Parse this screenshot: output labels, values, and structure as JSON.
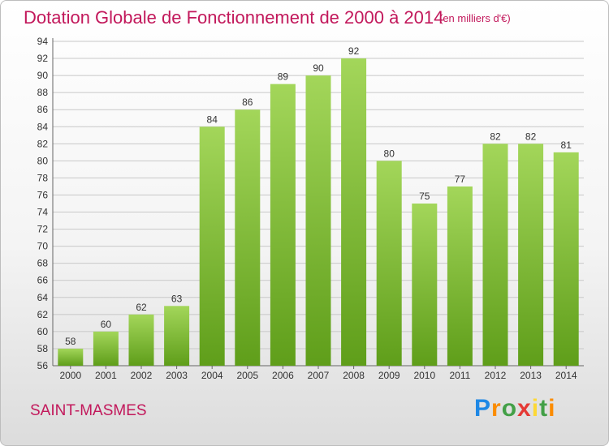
{
  "chart_data": {
    "type": "bar",
    "title": "Dotation Globale de Fonctionnement de 2000 à 2014",
    "subtitle": "(en milliers d'€)",
    "categories": [
      "2000",
      "2001",
      "2002",
      "2003",
      "2004",
      "2005",
      "2006",
      "2007",
      "2008",
      "2009",
      "2010",
      "2011",
      "2012",
      "2013",
      "2014"
    ],
    "values": [
      58,
      60,
      62,
      63,
      84,
      86,
      89,
      90,
      92,
      80,
      75,
      77,
      82,
      82,
      81
    ],
    "ylim": [
      56,
      94
    ],
    "ytick_step": 2,
    "grid": true,
    "bar_color": "#7fbf2f",
    "legend": "none"
  },
  "commune": "SAINT-MASMES",
  "logo_text": "Proxiti"
}
